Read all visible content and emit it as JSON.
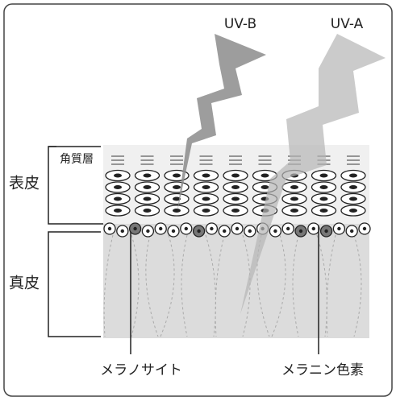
{
  "labels": {
    "uv_b": "UV-B",
    "uv_a": "UV-A",
    "stratum_corneum": "角質層",
    "epidermis": "表皮",
    "dermis": "真皮",
    "melanocyte": "メラノサイト",
    "melanin": "メラニン色素"
  }
}
